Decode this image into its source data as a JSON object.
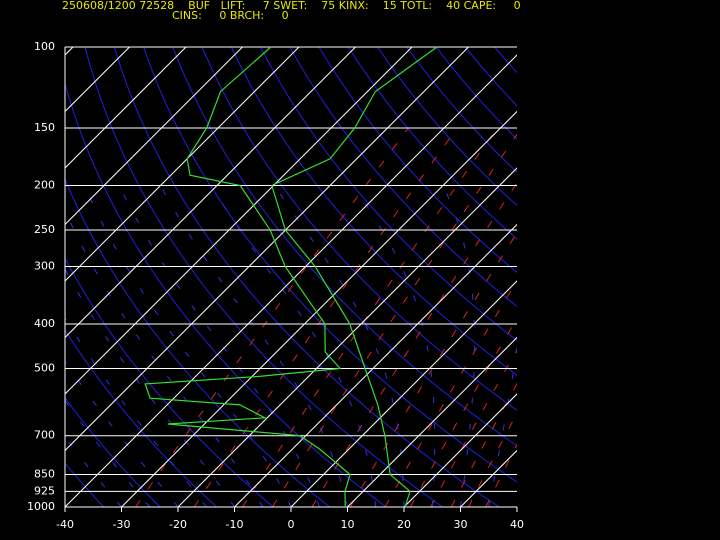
{
  "chart_data": {
    "type": "skewt",
    "header": [
      "250608/1200 72528    BUF   LIFT:     7 SWET:    75 KINX:    15 TOTL:    40 CAPE:     0",
      "CINS:     0 BRCH:     0"
    ],
    "ylim": [
      1000,
      100
    ],
    "yticks": [
      100,
      150,
      200,
      250,
      300,
      400,
      500,
      700,
      850,
      925,
      1000
    ],
    "log_y": true,
    "xlim": [
      -40,
      40
    ],
    "xticks": [
      -40,
      -30,
      -20,
      -10,
      0,
      10,
      20,
      30,
      40
    ],
    "series": [
      {
        "color": "#33dd33",
        "pressure": [
          1000,
          925,
          850,
          700,
          600,
          500,
          400,
          300,
          250,
          200,
          175,
          150,
          125,
          100
        ],
        "values": [
          20.2,
          18.3,
          11.8,
          4,
          -2.7,
          -11.4,
          -22,
          -38.3,
          -50,
          -60.3,
          -54.7,
          -55.8,
          -58.6,
          -55.6
        ]
      },
      {
        "color": "#33dd33",
        "pressure": [
          1000,
          925,
          850,
          750,
          700,
          660,
          640,
          600,
          580,
          540,
          520,
          500,
          460,
          400,
          300,
          250,
          200,
          190,
          175,
          150,
          125,
          100
        ],
        "values": [
          9.6,
          6.8,
          4.7,
          -5,
          -11,
          -36.5,
          -20.4,
          -27.1,
          -44.2,
          -47.6,
          -28.7,
          -15.8,
          -21.4,
          -26.4,
          -43.6,
          -52.7,
          -65.9,
          -76.6,
          -80,
          -82,
          -86,
          -85
        ]
      }
    ]
  }
}
